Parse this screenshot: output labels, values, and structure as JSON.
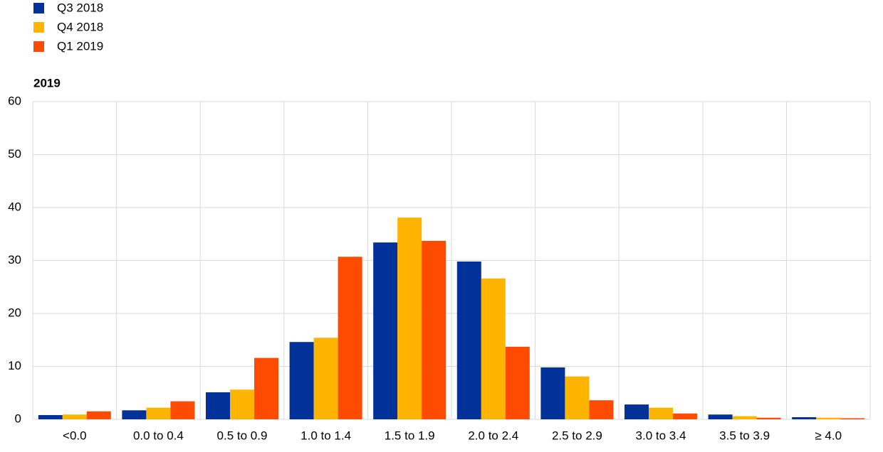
{
  "chart_data": {
    "type": "bar",
    "subtitle": "2019",
    "categories": [
      "<0.0",
      "0.0 to 0.4",
      "0.5 to 0.9",
      "1.0 to 1.4",
      "1.5 to 1.9",
      "2.0 to 2.4",
      "2.5 to 2.9",
      "3.0 to 3.4",
      "3.5 to 3.9",
      "≥ 4.0"
    ],
    "series": [
      {
        "name": "Q3 2018",
        "color": "#003299",
        "values": [
          0.8,
          1.7,
          5.1,
          14.6,
          33.4,
          29.8,
          9.8,
          2.8,
          0.9,
          0.4
        ]
      },
      {
        "name": "Q4 2018",
        "color": "#ffb400",
        "values": [
          0.9,
          2.2,
          5.6,
          15.4,
          38.1,
          26.6,
          8.1,
          2.2,
          0.6,
          0.3
        ]
      },
      {
        "name": "Q1 2019",
        "color": "#ff4b00",
        "values": [
          1.5,
          3.4,
          11.6,
          30.7,
          33.7,
          13.7,
          3.6,
          1.1,
          0.3,
          0.2
        ]
      }
    ],
    "ylim": [
      0,
      60
    ],
    "yticks": [
      0,
      10,
      20,
      30,
      40,
      50,
      60
    ],
    "grid": true,
    "legend": "top-left"
  }
}
